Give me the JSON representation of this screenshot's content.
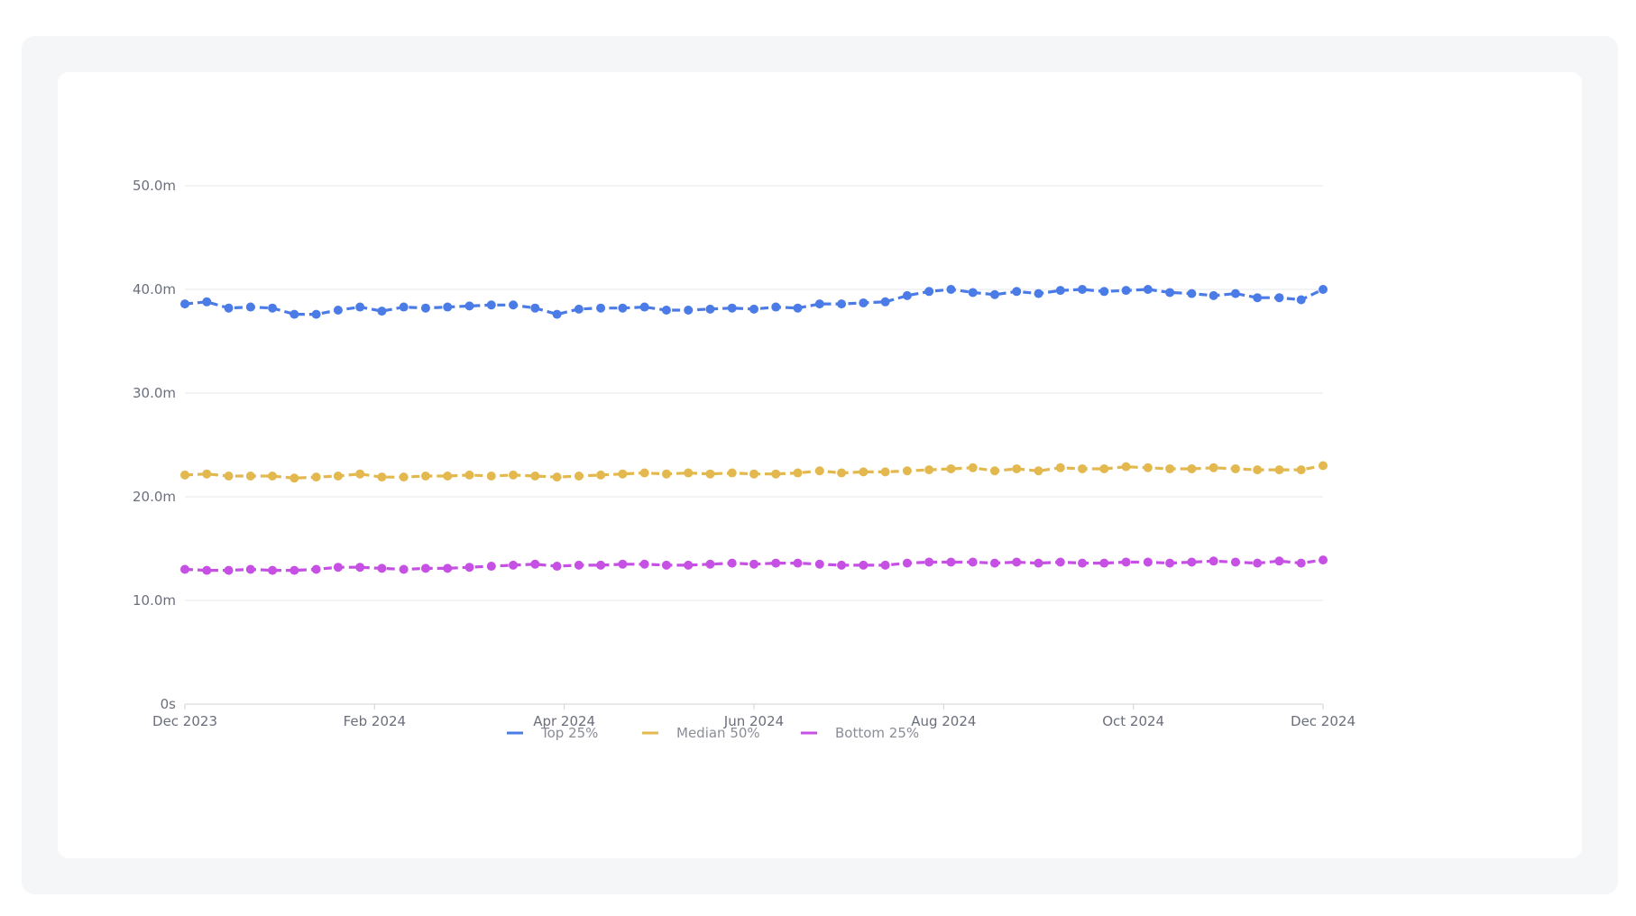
{
  "chart_data": {
    "type": "line",
    "x_labels": [
      "Dec 2023",
      "Feb 2024",
      "Apr 2024",
      "Jun 2024",
      "Aug 2024",
      "Oct 2024",
      "Dec 2024"
    ],
    "y_ticks": [
      "0s",
      "10.0m",
      "20.0m",
      "30.0m",
      "40.0m",
      "50.0m"
    ],
    "ylim": [
      0,
      50
    ],
    "xlim": [
      "2023-12-01",
      "2024-12-01"
    ],
    "grid": true,
    "legend_position": "bottom-center",
    "series": [
      {
        "name": "Top 25%",
        "color": "#4a7be6",
        "values": [
          38.6,
          38.8,
          38.2,
          38.3,
          38.2,
          37.6,
          37.6,
          38.0,
          38.3,
          37.9,
          38.3,
          38.2,
          38.3,
          38.4,
          38.5,
          38.5,
          38.2,
          37.6,
          38.1,
          38.2,
          38.2,
          38.3,
          38.0,
          38.0,
          38.1,
          38.2,
          38.1,
          38.3,
          38.2,
          38.6,
          38.6,
          38.7,
          38.8,
          39.4,
          39.8,
          40.0,
          39.7,
          39.5,
          39.8,
          39.6,
          39.9,
          40.0,
          39.8,
          39.9,
          40.0,
          39.7,
          39.6,
          39.4,
          39.6,
          39.2,
          39.2,
          39.0,
          40.0
        ]
      },
      {
        "name": "Median 50%",
        "color": "#e3b94f",
        "values": [
          22.1,
          22.2,
          22.0,
          22.0,
          22.0,
          21.8,
          21.9,
          22.0,
          22.2,
          21.9,
          21.9,
          22.0,
          22.0,
          22.1,
          22.0,
          22.1,
          22.0,
          21.9,
          22.0,
          22.1,
          22.2,
          22.3,
          22.2,
          22.3,
          22.2,
          22.3,
          22.2,
          22.2,
          22.3,
          22.5,
          22.3,
          22.4,
          22.4,
          22.5,
          22.6,
          22.7,
          22.8,
          22.5,
          22.7,
          22.5,
          22.8,
          22.7,
          22.7,
          22.9,
          22.8,
          22.7,
          22.7,
          22.8,
          22.7,
          22.6,
          22.6,
          22.6,
          23.0
        ]
      },
      {
        "name": "Bottom 25%",
        "color": "#c550e3",
        "values": [
          13.0,
          12.9,
          12.9,
          13.0,
          12.9,
          12.9,
          13.0,
          13.2,
          13.2,
          13.1,
          13.0,
          13.1,
          13.1,
          13.2,
          13.3,
          13.4,
          13.5,
          13.3,
          13.4,
          13.4,
          13.5,
          13.5,
          13.4,
          13.4,
          13.5,
          13.6,
          13.5,
          13.6,
          13.6,
          13.5,
          13.4,
          13.4,
          13.4,
          13.6,
          13.7,
          13.7,
          13.7,
          13.6,
          13.7,
          13.6,
          13.7,
          13.6,
          13.6,
          13.7,
          13.7,
          13.6,
          13.7,
          13.8,
          13.7,
          13.6,
          13.8,
          13.6,
          13.9
        ]
      }
    ]
  }
}
